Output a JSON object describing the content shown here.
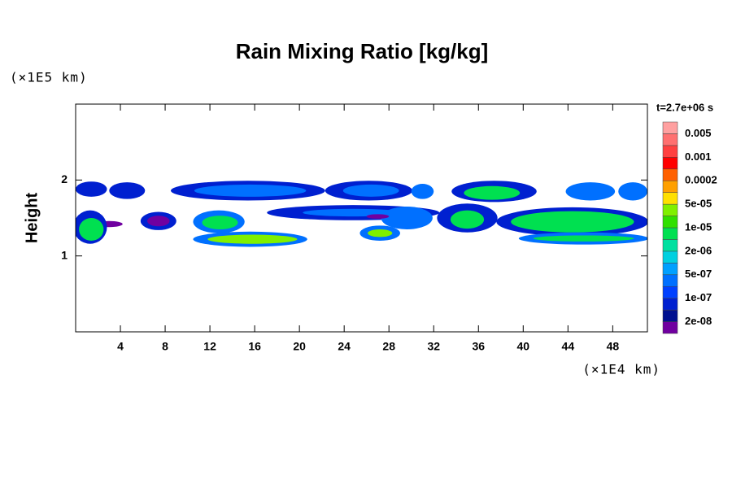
{
  "chart_data": {
    "type": "contour",
    "title": "Rain Mixing Ratio [kg/kg]",
    "ylabel": "Height",
    "y_unit": "(×1E5 km)",
    "x_unit": "(×1E4 km)",
    "time_label": "t=2.7e+06 s",
    "xlim": [
      0,
      51.1
    ],
    "xticks": [
      4,
      8,
      12,
      16,
      20,
      24,
      28,
      32,
      36,
      40,
      44,
      48
    ],
    "ylim": [
      0,
      3
    ],
    "yticks": [
      1,
      2
    ],
    "colorbar": {
      "colors": [
        "#7000a0",
        "#001090",
        "#0020d0",
        "#0040ff",
        "#0070ff",
        "#00a0ff",
        "#00d0e0",
        "#00e0a0",
        "#00e050",
        "#30e000",
        "#80f000",
        "#ffe000",
        "#ffa000",
        "#ff6000",
        "#ff0000",
        "#ff4040",
        "#ff7070",
        "#ffa0a0"
      ],
      "labels": [
        "2e-08",
        "1e-07",
        "5e-07",
        "2e-06",
        "1e-05",
        "5e-05",
        "0.0002",
        "0.001",
        "0.005"
      ]
    },
    "blobs": [
      {
        "x": 1.4,
        "y": 1.88,
        "w": 2.8,
        "h": 0.2,
        "value": 1e-07
      },
      {
        "x": 4.6,
        "y": 1.86,
        "w": 3.2,
        "h": 0.22,
        "value": 1e-07
      },
      {
        "x": 15.4,
        "y": 1.86,
        "w": 13.8,
        "h": 0.26,
        "value": 1e-07
      },
      {
        "x": 15.6,
        "y": 1.86,
        "w": 10,
        "h": 0.16,
        "value": 5e-07
      },
      {
        "x": 26.2,
        "y": 1.86,
        "w": 7.8,
        "h": 0.26,
        "value": 1e-07
      },
      {
        "x": 26.4,
        "y": 1.86,
        "w": 5,
        "h": 0.16,
        "value": 5e-07
      },
      {
        "x": 31,
        "y": 1.85,
        "w": 2,
        "h": 0.2,
        "value": 5e-07
      },
      {
        "x": 37.4,
        "y": 1.85,
        "w": 7.6,
        "h": 0.28,
        "value": 1e-07
      },
      {
        "x": 37.2,
        "y": 1.83,
        "w": 5,
        "h": 0.18,
        "value": 1e-05
      },
      {
        "x": 46,
        "y": 1.85,
        "w": 4.4,
        "h": 0.24,
        "value": 5e-07
      },
      {
        "x": 49.8,
        "y": 1.85,
        "w": 2.6,
        "h": 0.24,
        "value": 5e-07
      },
      {
        "x": 24.8,
        "y": 1.57,
        "w": 15.4,
        "h": 0.2,
        "value": 1e-07
      },
      {
        "x": 24.8,
        "y": 1.57,
        "w": 9,
        "h": 0.1,
        "value": 5e-07
      },
      {
        "x": 29.6,
        "y": 1.5,
        "w": 4.6,
        "h": 0.3,
        "value": 5e-07
      },
      {
        "x": 35,
        "y": 1.5,
        "w": 5.4,
        "h": 0.38,
        "value": 1e-07
      },
      {
        "x": 35,
        "y": 1.48,
        "w": 3,
        "h": 0.24,
        "value": 1e-05
      },
      {
        "x": 44.4,
        "y": 1.45,
        "w": 13.6,
        "h": 0.38,
        "value": 1e-07
      },
      {
        "x": 44.4,
        "y": 1.45,
        "w": 11,
        "h": 0.28,
        "value": 1e-05
      },
      {
        "x": 7.4,
        "y": 1.46,
        "w": 3.2,
        "h": 0.24,
        "value": 1e-07
      },
      {
        "x": 7.4,
        "y": 1.46,
        "w": 2,
        "h": 0.14,
        "value": 2e-08
      },
      {
        "x": 3,
        "y": 1.42,
        "w": 2.4,
        "h": 0.08,
        "value": 2e-08
      },
      {
        "x": 1.3,
        "y": 1.38,
        "w": 3,
        "h": 0.44,
        "value": 1e-07
      },
      {
        "x": 1.4,
        "y": 1.35,
        "w": 2.2,
        "h": 0.3,
        "value": 1e-05
      },
      {
        "x": 12.8,
        "y": 1.45,
        "w": 4.6,
        "h": 0.3,
        "value": 5e-07
      },
      {
        "x": 12.9,
        "y": 1.44,
        "w": 3.2,
        "h": 0.18,
        "value": 1e-05
      },
      {
        "x": 15.6,
        "y": 1.22,
        "w": 10.2,
        "h": 0.2,
        "value": 5e-07
      },
      {
        "x": 15.8,
        "y": 1.22,
        "w": 8,
        "h": 0.12,
        "value": 5e-05
      },
      {
        "x": 27.2,
        "y": 1.3,
        "w": 3.6,
        "h": 0.2,
        "value": 5e-07
      },
      {
        "x": 27.2,
        "y": 1.3,
        "w": 2.2,
        "h": 0.1,
        "value": 5e-05
      },
      {
        "x": 45.4,
        "y": 1.23,
        "w": 11.6,
        "h": 0.16,
        "value": 5e-07
      },
      {
        "x": 45.4,
        "y": 1.23,
        "w": 9,
        "h": 0.08,
        "value": 1e-05
      },
      {
        "x": 27,
        "y": 1.52,
        "w": 2,
        "h": 0.06,
        "value": 2e-08
      }
    ]
  }
}
